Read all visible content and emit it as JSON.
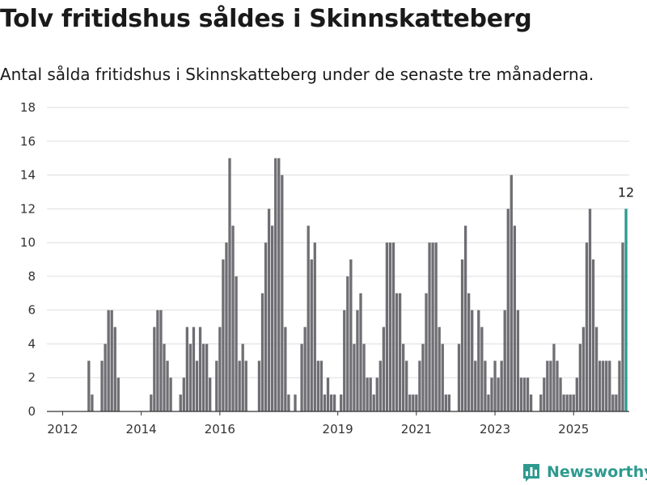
{
  "chart_data": {
    "type": "bar",
    "title": "Tolv fritidshus såldes i Skinnskatteberg",
    "subtitle": "Antal sålda fritidshus i Skinnskatteberg under de senaste tre månaderna.",
    "ylim": [
      0,
      18
    ],
    "yticks": [
      0,
      2,
      4,
      6,
      8,
      10,
      12,
      14,
      16,
      18
    ],
    "xticks": [
      "2012",
      "2014",
      "2016",
      "2019",
      "2021",
      "2023",
      "2025"
    ],
    "grid": true,
    "bar_color": "#6e6e73",
    "highlight_color": "#2e9a8f",
    "highlight_label": "12",
    "values": [
      0,
      0,
      0,
      0,
      0,
      0,
      0,
      0,
      3,
      1,
      0,
      0,
      3,
      4,
      6,
      6,
      5,
      2,
      0,
      0,
      0,
      0,
      0,
      0,
      0,
      0,
      0,
      1,
      5,
      6,
      6,
      4,
      3,
      2,
      0,
      0,
      1,
      2,
      5,
      4,
      5,
      3,
      5,
      4,
      4,
      2,
      0,
      3,
      5,
      9,
      10,
      15,
      11,
      8,
      3,
      4,
      3,
      0,
      0,
      0,
      3,
      7,
      10,
      12,
      11,
      15,
      15,
      14,
      5,
      1,
      0,
      1,
      0,
      4,
      5,
      11,
      9,
      10,
      3,
      3,
      1,
      2,
      1,
      1,
      0,
      1,
      6,
      8,
      9,
      4,
      6,
      7,
      4,
      2,
      2,
      1,
      2,
      3,
      5,
      10,
      10,
      10,
      7,
      7,
      4,
      3,
      1,
      1,
      1,
      3,
      4,
      7,
      10,
      10,
      10,
      5,
      4,
      1,
      1,
      0,
      0,
      4,
      9,
      11,
      7,
      6,
      3,
      6,
      5,
      3,
      1,
      2,
      3,
      2,
      3,
      6,
      12,
      14,
      11,
      6,
      2,
      2,
      2,
      1,
      0,
      0,
      1,
      2,
      3,
      3,
      4,
      3,
      2,
      1,
      1,
      1,
      1,
      2,
      4,
      5,
      10,
      12,
      9,
      5,
      3,
      3,
      3,
      3,
      1,
      1,
      3,
      10,
      12
    ]
  },
  "brand": {
    "name": "Newsworthy",
    "icon": "newsworthy-logo-icon"
  }
}
